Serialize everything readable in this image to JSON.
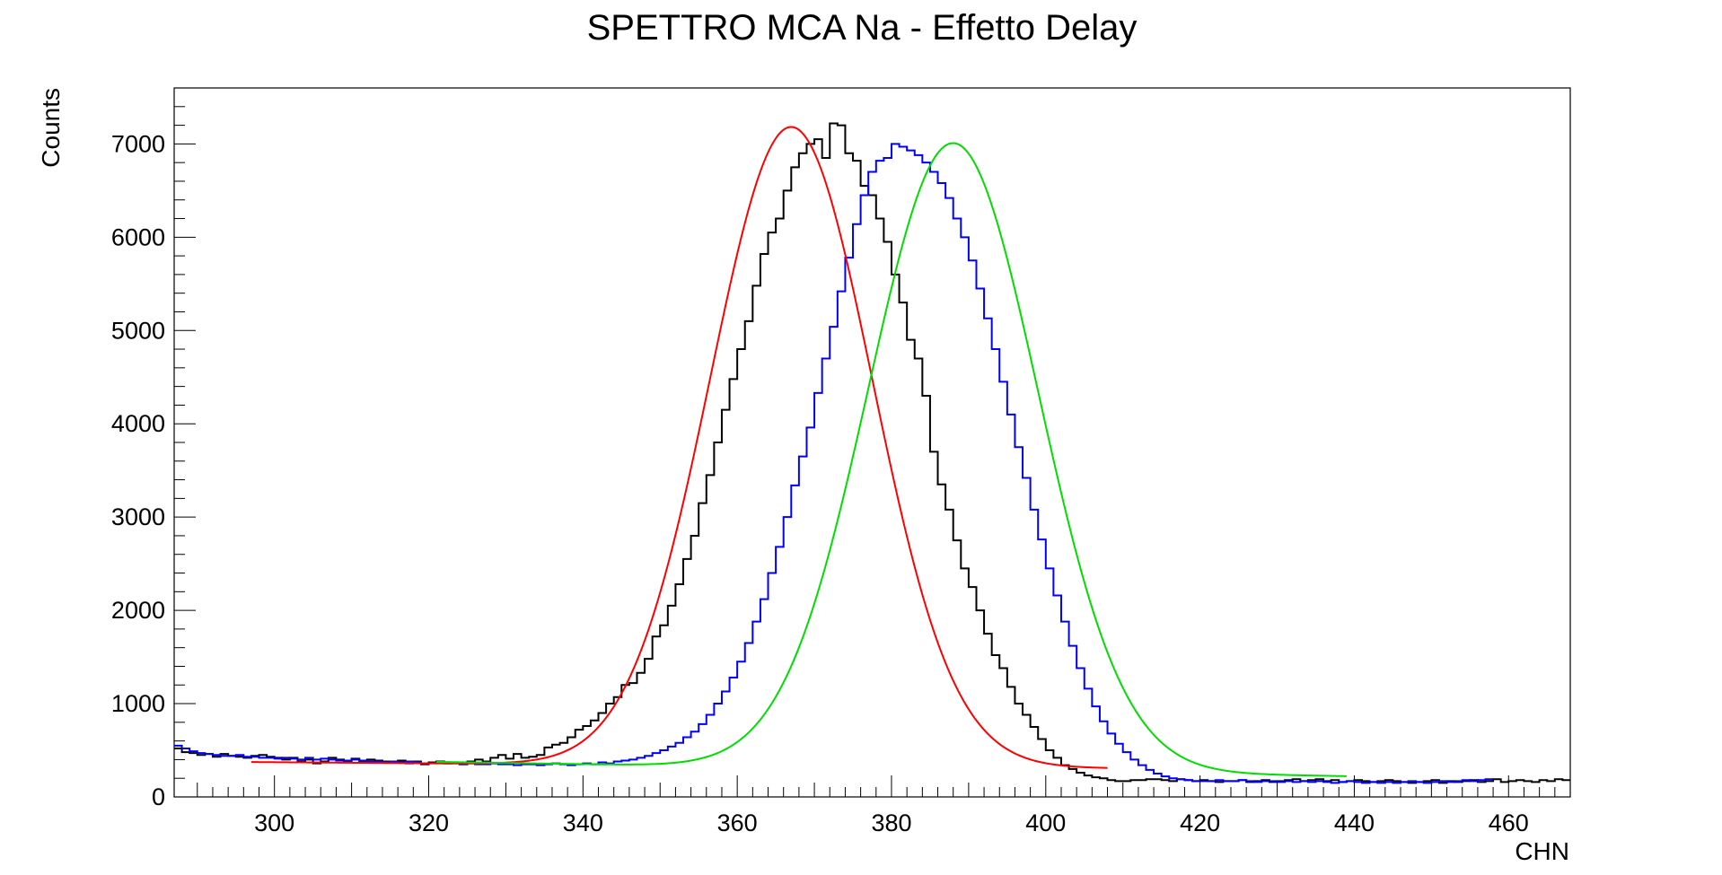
{
  "chart_data": {
    "type": "line",
    "title": "SPETTRO MCA Na - Effetto Delay",
    "xlabel": "CHN",
    "ylabel": "Counts",
    "xlim": [
      287,
      468
    ],
    "ylim": [
      0,
      7600
    ],
    "x_ticks": [
      300,
      320,
      340,
      360,
      380,
      400,
      420,
      440,
      460
    ],
    "y_ticks": [
      0,
      1000,
      2000,
      3000,
      4000,
      5000,
      6000,
      7000
    ],
    "grid": false,
    "legend": "none",
    "bin_width": 1,
    "series": [
      {
        "kind": "histogram",
        "color": "#000000",
        "x_start": 287,
        "values": [
          520,
          480,
          470,
          450,
          460,
          430,
          460,
          440,
          430,
          420,
          440,
          450,
          430,
          420,
          400,
          420,
          380,
          400,
          360,
          380,
          420,
          400,
          380,
          410,
          380,
          400,
          390,
          380,
          370,
          390,
          360,
          380,
          350,
          370,
          380,
          360,
          370,
          350,
          380,
          400,
          380,
          420,
          450,
          410,
          460,
          420,
          430,
          450,
          530,
          560,
          580,
          640,
          720,
          760,
          820,
          900,
          1000,
          1070,
          1200,
          1220,
          1330,
          1480,
          1720,
          1840,
          2050,
          2280,
          2550,
          2800,
          3150,
          3450,
          3800,
          4150,
          4480,
          4800,
          5100,
          5480,
          5820,
          6050,
          6200,
          6500,
          6750,
          6900,
          7000,
          7050,
          6850,
          7220,
          7200,
          6900,
          6820,
          6550,
          6450,
          6200,
          5950,
          5600,
          5300,
          4900,
          4700,
          4300,
          3700,
          3350,
          3080,
          2750,
          2450,
          2250,
          2000,
          1750,
          1520,
          1380,
          1180,
          1000,
          880,
          750,
          620,
          500,
          420,
          340,
          300,
          260,
          230,
          210,
          200,
          180,
          170,
          170,
          180,
          180,
          190,
          190,
          180,
          170,
          190,
          180,
          170,
          180,
          170,
          160,
          170,
          170,
          180,
          160,
          170,
          180,
          160,
          170,
          180,
          190,
          170,
          180,
          190,
          170,
          180,
          160,
          170,
          180,
          170,
          160,
          170,
          180,
          170,
          160,
          150,
          160,
          170,
          180,
          150,
          170,
          160,
          170,
          180,
          160,
          170,
          190,
          160,
          170,
          180,
          170,
          160,
          180,
          170,
          190,
          180
        ]
      },
      {
        "kind": "histogram",
        "color": "#0000ff",
        "x_start": 287,
        "values": [
          550,
          520,
          490,
          470,
          460,
          450,
          440,
          440,
          450,
          430,
          430,
          420,
          420,
          410,
          420,
          410,
          400,
          420,
          400,
          410,
          400,
          390,
          390,
          400,
          390,
          380,
          380,
          370,
          380,
          370,
          380,
          370,
          360,
          360,
          370,
          360,
          360,
          350,
          360,
          350,
          350,
          360,
          350,
          350,
          340,
          350,
          350,
          340,
          350,
          360,
          350,
          340,
          350,
          360,
          350,
          370,
          360,
          380,
          390,
          400,
          420,
          440,
          470,
          500,
          540,
          580,
          640,
          700,
          780,
          880,
          1000,
          1130,
          1280,
          1450,
          1650,
          1880,
          2120,
          2400,
          2680,
          3000,
          3340,
          3650,
          3960,
          4330,
          4700,
          5040,
          5420,
          5780,
          6140,
          6450,
          6700,
          6820,
          6850,
          7000,
          6970,
          6930,
          6880,
          6800,
          6700,
          6580,
          6420,
          6200,
          6000,
          5750,
          5450,
          5130,
          4800,
          4450,
          4100,
          3750,
          3420,
          3080,
          2760,
          2450,
          2160,
          1880,
          1620,
          1380,
          1160,
          970,
          810,
          680,
          570,
          480,
          400,
          340,
          290,
          250,
          220,
          200,
          190,
          180,
          170,
          170,
          170,
          180,
          170,
          170,
          180,
          170,
          160,
          170,
          170,
          160,
          170,
          160,
          170,
          160,
          170,
          160,
          150,
          160,
          170,
          160,
          150,
          160,
          150,
          160,
          150,
          160,
          170,
          160,
          150,
          160,
          170,
          160,
          170,
          180,
          170,
          180,
          190
        ]
      },
      {
        "kind": "fit",
        "color": "#ff0000",
        "x_range": [
          297,
          408
        ],
        "amplitude": 6850,
        "mean": 367,
        "sigma": 10.5,
        "background": [
          380,
          -0.6
        ]
      },
      {
        "kind": "fit",
        "color": "#00dd00",
        "x_range": [
          321,
          439
        ],
        "amplitude": 6720,
        "mean": 388,
        "sigma": 11,
        "background": [
          420,
          -1.3
        ]
      }
    ]
  }
}
